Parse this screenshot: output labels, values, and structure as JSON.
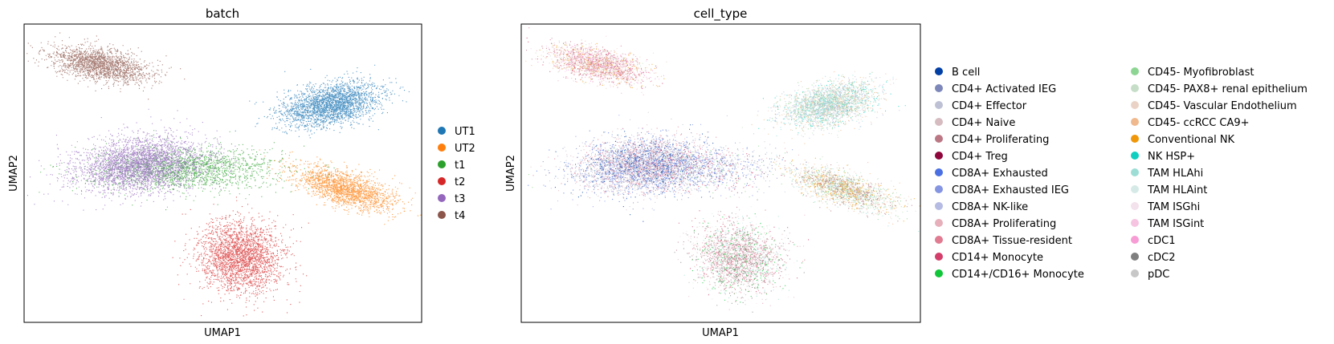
{
  "chart_data": [
    {
      "type": "scatter",
      "title": "batch",
      "xlabel": "UMAP1",
      "ylabel": "UMAP2",
      "xticks": false,
      "yticks": false,
      "legend_placement": "right",
      "legend_entries": [
        {
          "label": "UT1",
          "color": "#1f77b4"
        },
        {
          "label": "UT2",
          "color": "#ff7f0e"
        },
        {
          "label": "t1",
          "color": "#2ca02c"
        },
        {
          "label": "t2",
          "color": "#d62728"
        },
        {
          "label": "t3",
          "color": "#9467bd"
        },
        {
          "label": "t4",
          "color": "#8c564b"
        }
      ]
    },
    {
      "type": "scatter",
      "title": "cell_type",
      "xlabel": "UMAP1",
      "ylabel": "UMAP2",
      "xticks": false,
      "yticks": false,
      "legend_placement": "right",
      "legend_columns": 2,
      "legend_entries": [
        {
          "label": "B cell",
          "color": "#023fa5"
        },
        {
          "label": "CD4+ Activated IEG",
          "color": "#7d87b9"
        },
        {
          "label": "CD4+ Effector",
          "color": "#bec1d4"
        },
        {
          "label": "CD4+ Naive",
          "color": "#d6bcc0"
        },
        {
          "label": "CD4+ Proliferating",
          "color": "#bb7784"
        },
        {
          "label": "CD4+ Treg",
          "color": "#8e063b"
        },
        {
          "label": "CD8A+ Exhausted",
          "color": "#4a6fe3"
        },
        {
          "label": "CD8A+ Exhausted IEG",
          "color": "#8595e1"
        },
        {
          "label": "CD8A+ NK-like",
          "color": "#b5bbe3"
        },
        {
          "label": "CD8A+ Proliferating",
          "color": "#e6afb9"
        },
        {
          "label": "CD8A+ Tissue-resident",
          "color": "#e07b91"
        },
        {
          "label": "CD14+ Monocyte",
          "color": "#d33f6a"
        },
        {
          "label": "CD14+/CD16+ Monocyte",
          "color": "#11c638"
        },
        {
          "label": "CD45- Myofibroblast",
          "color": "#8dd593"
        },
        {
          "label": "CD45- PAX8+ renal epithelium",
          "color": "#c6dec7"
        },
        {
          "label": "CD45- Vascular Endothelium",
          "color": "#ead3c6"
        },
        {
          "label": "CD45- ccRCC CA9+",
          "color": "#f0b98d"
        },
        {
          "label": "Conventional NK",
          "color": "#ef9708"
        },
        {
          "label": "NK HSP+",
          "color": "#0fcfc0"
        },
        {
          "label": "TAM HLAhi",
          "color": "#9cded6"
        },
        {
          "label": "TAM HLAint",
          "color": "#d5eae7"
        },
        {
          "label": "TAM ISGhi",
          "color": "#f3e1eb"
        },
        {
          "label": "TAM ISGint",
          "color": "#f6c4e1"
        },
        {
          "label": "cDC1",
          "color": "#f79cd4"
        },
        {
          "label": "cDC2",
          "color": "#7f7f7f"
        },
        {
          "label": "pDC",
          "color": "#c7c7c7"
        }
      ]
    }
  ]
}
